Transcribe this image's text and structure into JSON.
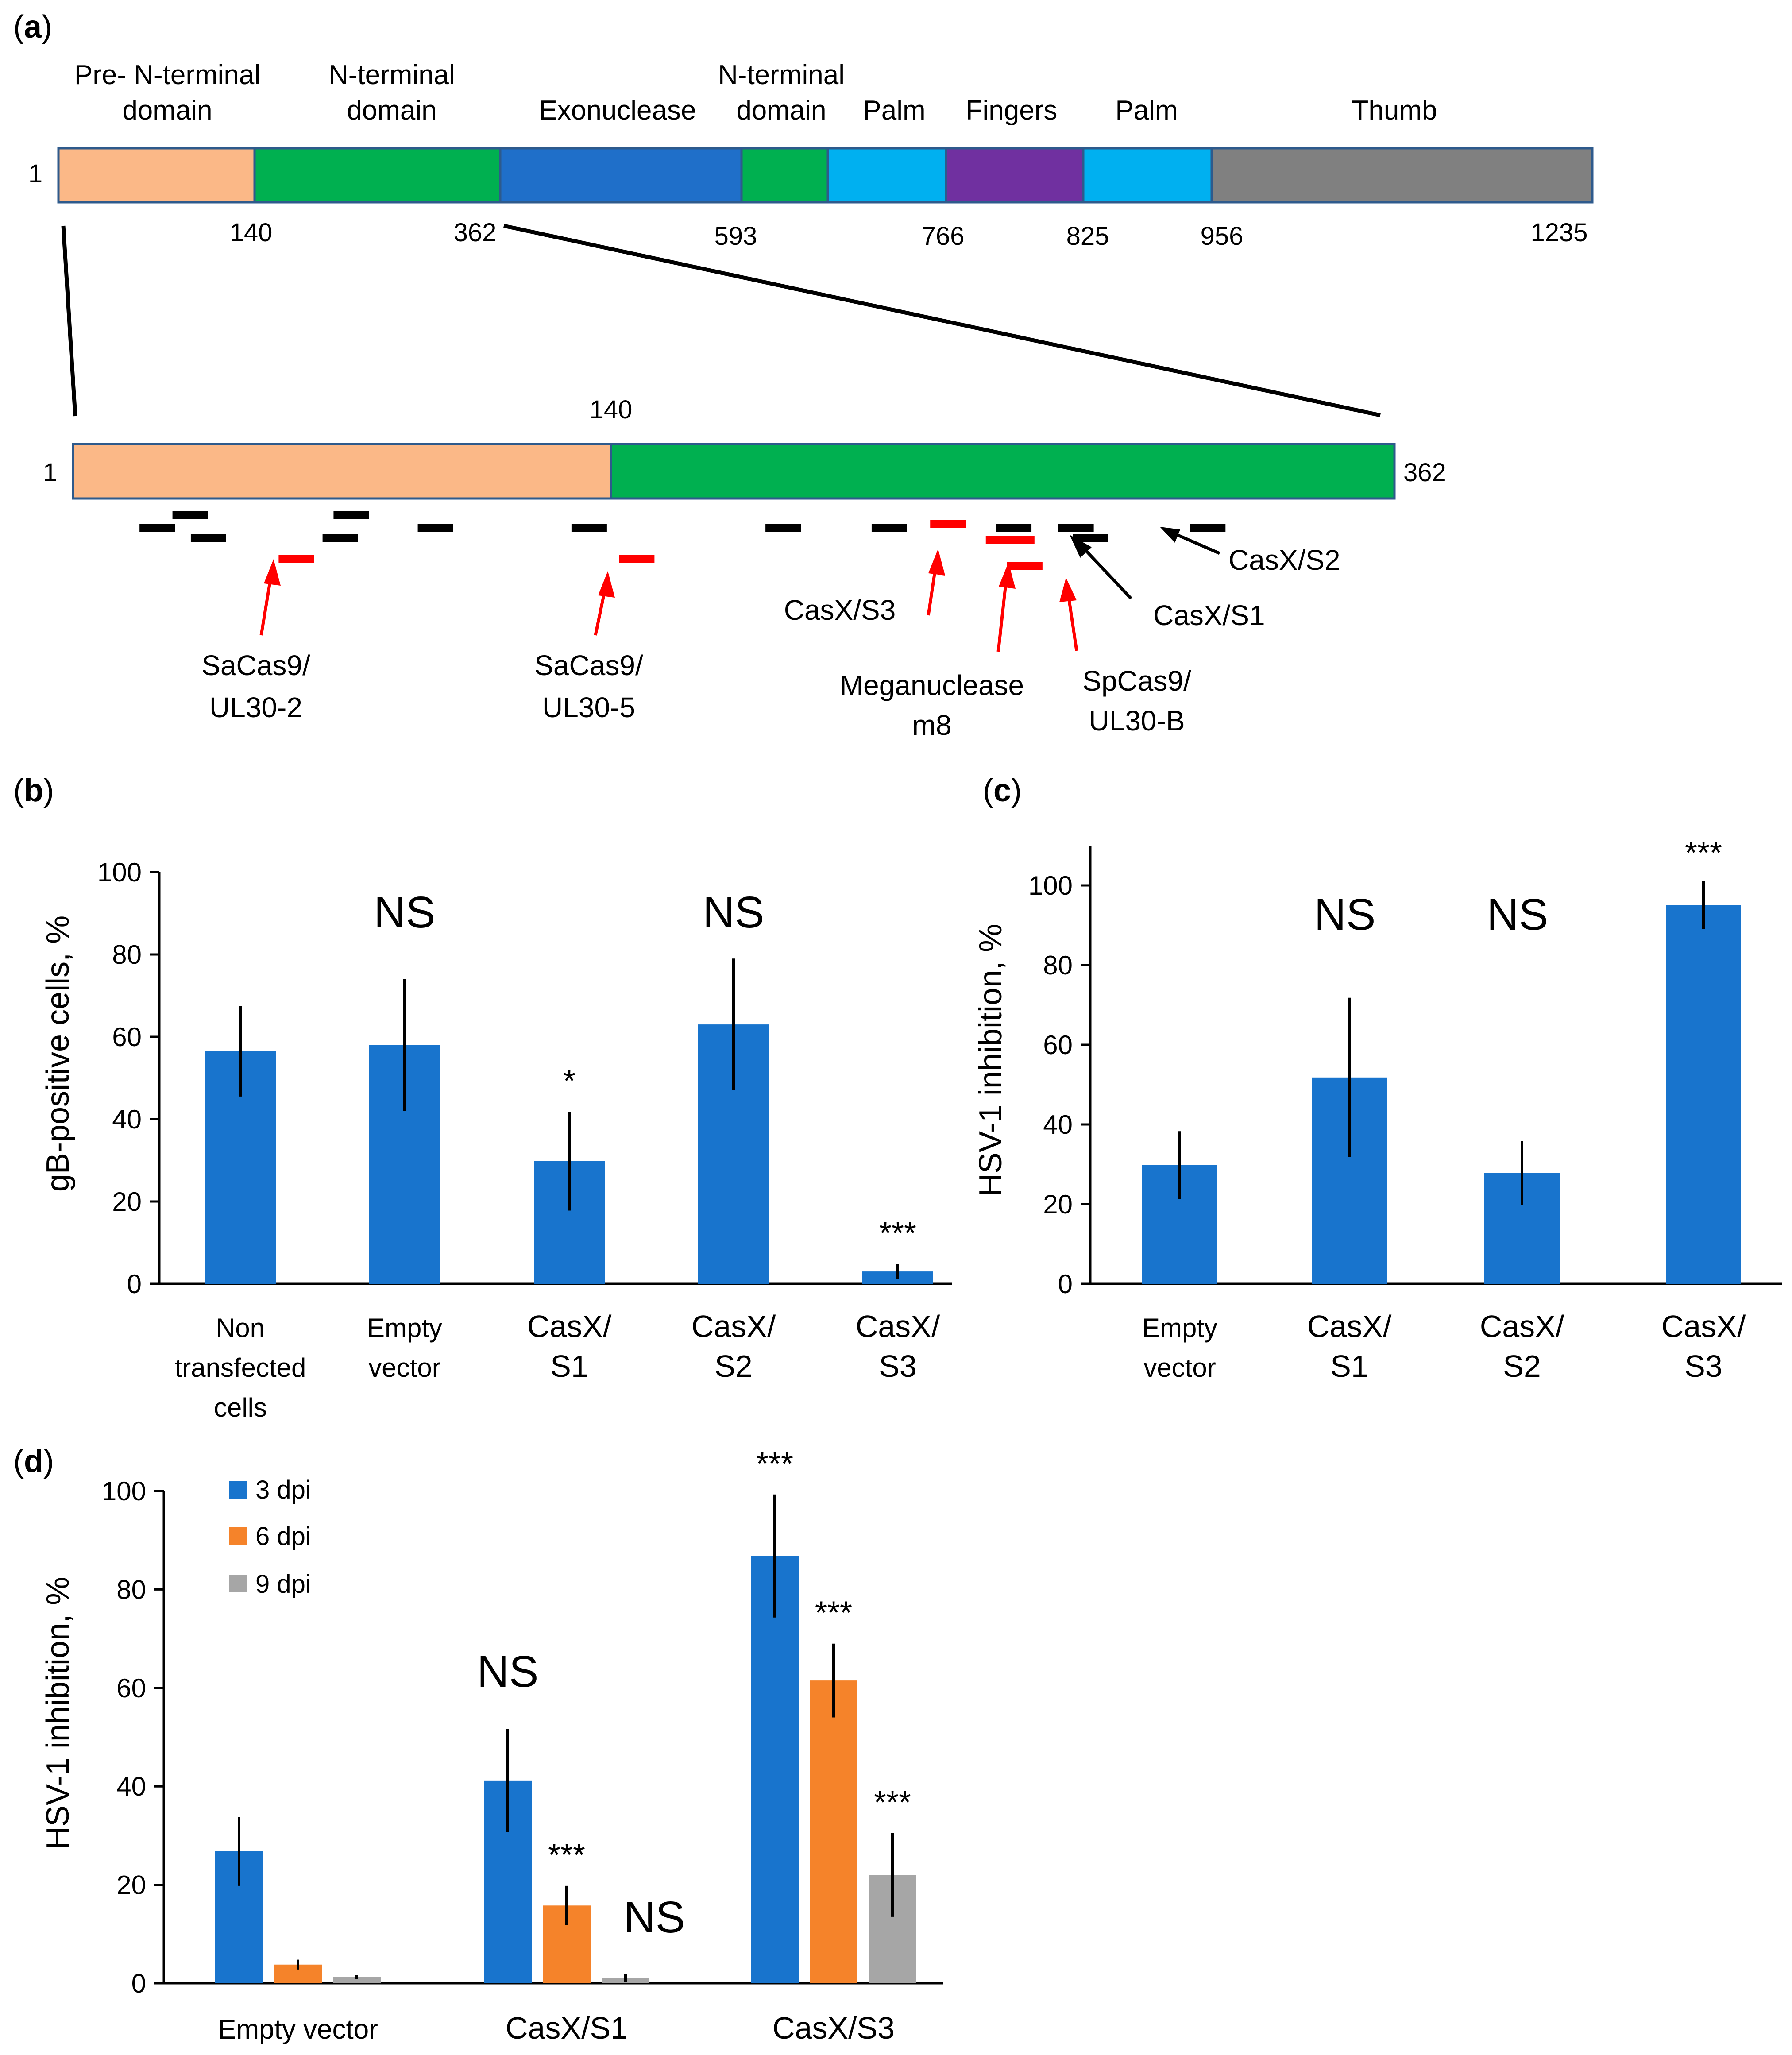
{
  "panel_labels": {
    "a": "a",
    "b": "b",
    "c": "c",
    "d": "d"
  },
  "colors": {
    "pre_n_terminal": "#FBB887",
    "n_terminal": "#00B050",
    "exonuclease": "#1F6FC9",
    "palm": "#00B0F0",
    "fingers": "#7030A0",
    "thumb": "#808080",
    "bar_blue": "#1874CD",
    "bar_orange": "#F5832A",
    "bar_gray": "#A6A6A6",
    "cut_black": "#000000",
    "cut_red": "#FF0000"
  },
  "domain_map": {
    "start_label": "1",
    "domains": [
      {
        "name": "Pre- N-terminal domain",
        "line1": "Pre- N-terminal",
        "line2": "domain",
        "start": 1,
        "end": 140,
        "color_key": "pre_n_terminal"
      },
      {
        "name": "N-terminal domain",
        "line1": "N-terminal",
        "line2": "domain",
        "start": 140,
        "end": 362,
        "color_key": "n_terminal"
      },
      {
        "name": "Exonuclease",
        "line1": "",
        "line2": "Exonuclease",
        "start": 362,
        "end": 593,
        "color_key": "exonuclease"
      },
      {
        "name": "N-terminal domain",
        "line1": "N-terminal",
        "line2": "domain",
        "start": 593,
        "end": 672,
        "color_key": "n_terminal"
      },
      {
        "name": "Palm",
        "line1": "",
        "line2": "Palm",
        "start": 672,
        "end": 766,
        "color_key": "palm"
      },
      {
        "name": "Fingers",
        "line1": "",
        "line2": "Fingers",
        "start": 766,
        "end": 825,
        "color_key": "fingers"
      },
      {
        "name": "Palm",
        "line1": "",
        "line2": "Palm",
        "start": 825,
        "end": 956,
        "color_key": "palm"
      },
      {
        "name": "Thumb",
        "line1": "",
        "line2": "Thumb",
        "start": 956,
        "end": 1235,
        "color_key": "thumb"
      }
    ],
    "position_ticks": [
      "140",
      "362",
      "593",
      "766",
      "825",
      "956",
      "1235"
    ],
    "zoom": {
      "start_label": "1",
      "mid_label": "140",
      "end_label": "362",
      "guide_marks": [
        {
          "pos": 24,
          "row": 2,
          "color": "black"
        },
        {
          "pos": 33,
          "row": 1,
          "color": "black"
        },
        {
          "pos": 38,
          "row": 3,
          "color": "black"
        },
        {
          "pos": 62,
          "row": 4,
          "color": "red"
        },
        {
          "pos": 74,
          "row": 3,
          "color": "black"
        },
        {
          "pos": 77,
          "row": 1,
          "color": "black"
        },
        {
          "pos": 100,
          "row": 2,
          "color": "black"
        },
        {
          "pos": 142,
          "row": 2,
          "color": "black"
        },
        {
          "pos": 155,
          "row": 4,
          "color": "red"
        },
        {
          "pos": 195,
          "row": 2,
          "color": "black"
        },
        {
          "pos": 224,
          "row": 2,
          "color": "black"
        },
        {
          "pos": 240,
          "row": 2,
          "color": "red"
        },
        {
          "pos": 257,
          "row": 3,
          "color": "red"
        },
        {
          "pos": 258,
          "row": 2,
          "color": "black"
        },
        {
          "pos": 261,
          "row": 5,
          "color": "red"
        },
        {
          "pos": 275,
          "row": 2,
          "color": "black"
        },
        {
          "pos": 279,
          "row": 3,
          "color": "black"
        },
        {
          "pos": 311,
          "row": 2,
          "color": "black"
        }
      ],
      "annotations": [
        {
          "line1": "SaCas9/",
          "line2": "UL30-2"
        },
        {
          "line1": "SaCas9/",
          "line2": "UL30-5"
        },
        {
          "line1": "CasX/S3",
          "line2": ""
        },
        {
          "line1": "Meganuclease",
          "line2": "m8"
        },
        {
          "line1": "SpCas9/",
          "line2": "UL30-B"
        },
        {
          "line1": "CasX/S1",
          "line2": ""
        },
        {
          "line1": "CasX/S2",
          "line2": ""
        }
      ]
    }
  },
  "chart_data": [
    {
      "panel": "b",
      "type": "bar",
      "ylabel": "gB-positive cells, %",
      "ylim": [
        0,
        100
      ],
      "yticks": [
        "0",
        "20",
        "40",
        "60",
        "80",
        "100"
      ],
      "categories": [
        {
          "line1": "Non",
          "line2": "transfected",
          "line3": "cells"
        },
        {
          "line1": "Empty",
          "line2": "vector",
          "line3": ""
        },
        {
          "line1": "CasX/",
          "line2": "S1",
          "line3": ""
        },
        {
          "line1": "CasX/",
          "line2": "S2",
          "line3": ""
        },
        {
          "line1": "CasX/",
          "line2": "S3",
          "line3": ""
        }
      ],
      "values": [
        56.5,
        58,
        29.8,
        63,
        3
      ],
      "errors": [
        11,
        16,
        12,
        16,
        1.8
      ],
      "significance": [
        "",
        "NS",
        "*",
        "NS",
        "***"
      ]
    },
    {
      "panel": "c",
      "type": "bar",
      "ylabel": "HSV-1 inhibition, %",
      "ylim": [
        0,
        110
      ],
      "yticks": [
        "0",
        "20",
        "40",
        "60",
        "80",
        "100"
      ],
      "categories": [
        {
          "line1": "Empty",
          "line2": "vector"
        },
        {
          "line1": "CasX/",
          "line2": "S1"
        },
        {
          "line1": "CasX/",
          "line2": "S2"
        },
        {
          "line1": "CasX/",
          "line2": "S3"
        }
      ],
      "values": [
        29.8,
        51.8,
        27.8,
        95
      ],
      "errors": [
        8.5,
        20,
        8,
        6
      ],
      "significance": [
        "",
        "NS",
        "NS",
        "***"
      ]
    },
    {
      "panel": "d",
      "type": "bar",
      "ylabel": "HSV-1 inhibition, %",
      "ylim": [
        0,
        100
      ],
      "yticks": [
        "0",
        "20",
        "40",
        "60",
        "80",
        "100"
      ],
      "categories": [
        "Empty vector",
        "CasX/S1",
        "CasX/S3"
      ],
      "legend_placement": "top-left",
      "series": [
        {
          "name": "3 dpi",
          "color_key": "bar_blue",
          "values": [
            26.8,
            41.2,
            86.8
          ],
          "errors": [
            7,
            10.5,
            12.5
          ],
          "significance": [
            "",
            "NS",
            "***"
          ]
        },
        {
          "name": "6 dpi",
          "color_key": "bar_orange",
          "values": [
            3.8,
            15.8,
            61.5
          ],
          "errors": [
            1,
            4,
            7.5
          ],
          "significance": [
            "",
            "***",
            "***"
          ]
        },
        {
          "name": "9 dpi",
          "color_key": "bar_gray",
          "values": [
            1.3,
            1,
            22
          ],
          "errors": [
            0.4,
            0.8,
            8.5
          ],
          "significance": [
            "",
            "NS",
            "***"
          ]
        }
      ]
    }
  ]
}
